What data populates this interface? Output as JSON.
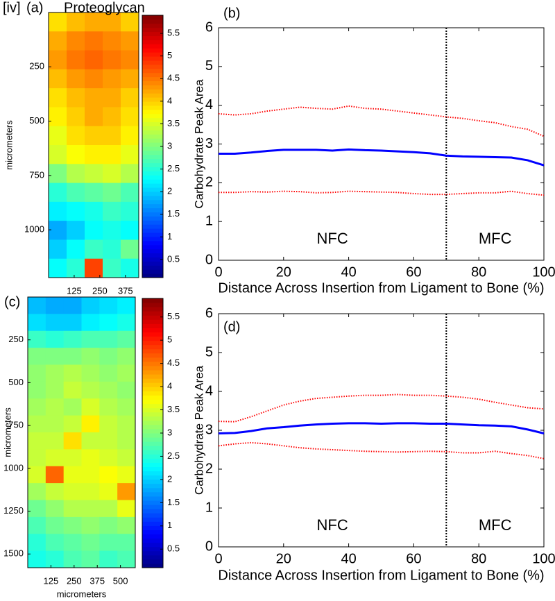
{
  "figure_label": "[iv]",
  "chart_data": [
    {
      "type": "heatmap",
      "panel": "(a)",
      "title": "Proteoglycan",
      "xlabel": "micrometers",
      "ylabel": "micrometers",
      "colormap": "jet",
      "y_inverted": true,
      "xlim": [
        0,
        440
      ],
      "xticks": [
        125,
        250,
        375
      ],
      "ylim": [
        0,
        1220
      ],
      "yticks": [
        250,
        500,
        750,
        1000
      ],
      "colorbar": {
        "lim": [
          0.1,
          5.9
        ],
        "ticks": [
          0.5,
          1,
          1.5,
          2,
          2.5,
          3,
          3.5,
          4,
          4.5,
          5,
          5.5
        ]
      },
      "z": [
        [
          3.9,
          4.1,
          4.2,
          4.2,
          4.0
        ],
        [
          4.2,
          4.4,
          4.5,
          4.4,
          4.3
        ],
        [
          4.3,
          4.5,
          4.6,
          4.5,
          4.4
        ],
        [
          4.1,
          4.3,
          4.4,
          4.3,
          4.2
        ],
        [
          3.9,
          4.1,
          4.2,
          4.2,
          4.0
        ],
        [
          3.8,
          4.0,
          4.2,
          4.1,
          3.9
        ],
        [
          3.6,
          3.9,
          4.0,
          4.0,
          3.8
        ],
        [
          3.5,
          3.7,
          3.8,
          3.8,
          3.6
        ],
        [
          3.0,
          3.3,
          3.4,
          3.5,
          3.3
        ],
        [
          2.5,
          2.7,
          2.8,
          2.9,
          2.7
        ],
        [
          2.2,
          2.3,
          2.4,
          2.6,
          2.5
        ],
        [
          1.8,
          2.0,
          2.3,
          2.4,
          2.3
        ],
        [
          2.0,
          2.3,
          2.6,
          2.5,
          2.9
        ],
        [
          2.3,
          2.5,
          4.8,
          2.6,
          2.4
        ]
      ]
    },
    {
      "type": "line",
      "panel": "(b)",
      "xlabel": "Distance Across Insertion from Ligament to Bone (%)",
      "ylabel": "Carbohydrate Peak Area",
      "xlim": [
        0,
        100
      ],
      "xticks": [
        0,
        20,
        40,
        60,
        80,
        100
      ],
      "ylim": [
        0,
        6
      ],
      "yticks": [
        0,
        1,
        2,
        3,
        4,
        5,
        6
      ],
      "divider": 70,
      "annotations": [
        "NFC",
        "MFC"
      ],
      "x": [
        0,
        5,
        10,
        15,
        20,
        25,
        30,
        35,
        40,
        45,
        50,
        55,
        60,
        65,
        70,
        75,
        80,
        85,
        90,
        95,
        100
      ],
      "series": [
        {
          "color": "#0000ff",
          "style": "solid",
          "values": [
            2.75,
            2.75,
            2.78,
            2.82,
            2.85,
            2.85,
            2.85,
            2.83,
            2.86,
            2.84,
            2.83,
            2.81,
            2.79,
            2.76,
            2.7,
            2.68,
            2.67,
            2.66,
            2.65,
            2.58,
            2.45
          ]
        },
        {
          "color": "#ff0000",
          "style": "dotted",
          "values": [
            3.78,
            3.75,
            3.78,
            3.85,
            3.9,
            3.95,
            3.92,
            3.9,
            3.98,
            3.92,
            3.9,
            3.85,
            3.8,
            3.75,
            3.7,
            3.66,
            3.6,
            3.55,
            3.45,
            3.38,
            3.2
          ]
        },
        {
          "color": "#ff0000",
          "style": "dotted",
          "values": [
            1.75,
            1.75,
            1.77,
            1.76,
            1.78,
            1.77,
            1.74,
            1.75,
            1.78,
            1.77,
            1.76,
            1.75,
            1.72,
            1.7,
            1.7,
            1.72,
            1.74,
            1.74,
            1.78,
            1.72,
            1.68
          ]
        }
      ]
    },
    {
      "type": "heatmap",
      "panel": "(c)",
      "xlabel": "micrometers",
      "ylabel": "micrometers",
      "colormap": "jet",
      "y_inverted": true,
      "xlim": [
        0,
        580
      ],
      "xticks": [
        125,
        250,
        375,
        500
      ],
      "ylim": [
        0,
        1580
      ],
      "yticks": [
        250,
        500,
        750,
        1000,
        1250,
        1500
      ],
      "colorbar": {
        "lim": [
          0.1,
          5.9
        ],
        "ticks": [
          0.5,
          1,
          1.5,
          2,
          2.5,
          3,
          3.5,
          4,
          4.5,
          5,
          5.5
        ]
      },
      "z": [
        [
          1.9,
          1.8,
          1.8,
          2.0,
          2.1,
          2.2
        ],
        [
          2.1,
          2.0,
          2.0,
          2.2,
          2.3,
          2.4
        ],
        [
          2.6,
          2.5,
          2.6,
          2.7,
          2.7,
          2.8
        ],
        [
          3.0,
          3.0,
          3.0,
          3.1,
          3.0,
          3.1
        ],
        [
          3.1,
          3.2,
          3.3,
          3.2,
          3.1,
          3.2
        ],
        [
          3.1,
          3.2,
          3.4,
          3.3,
          3.2,
          3.1
        ],
        [
          3.2,
          3.3,
          3.2,
          3.5,
          3.3,
          3.2
        ],
        [
          3.3,
          3.3,
          3.4,
          3.8,
          3.4,
          3.3
        ],
        [
          3.4,
          3.4,
          3.9,
          3.4,
          3.4,
          3.3
        ],
        [
          3.4,
          3.5,
          3.5,
          3.6,
          3.5,
          3.4
        ],
        [
          3.5,
          4.6,
          3.6,
          3.6,
          3.7,
          3.6
        ],
        [
          3.2,
          3.4,
          3.5,
          3.5,
          3.6,
          4.3
        ],
        [
          2.9,
          3.1,
          3.3,
          3.3,
          3.3,
          3.6
        ],
        [
          2.7,
          2.9,
          3.0,
          3.1,
          3.0,
          3.1
        ],
        [
          2.5,
          2.7,
          2.8,
          2.9,
          2.8,
          2.8
        ],
        [
          2.4,
          2.5,
          2.7,
          2.8,
          2.6,
          2.7
        ]
      ]
    },
    {
      "type": "line",
      "panel": "(d)",
      "xlabel": "Distance Across Insertion from Ligament to Bone (%)",
      "ylabel": "Carbohydrate Peak Area",
      "xlim": [
        0,
        100
      ],
      "xticks": [
        0,
        20,
        40,
        60,
        80,
        100
      ],
      "ylim": [
        0,
        6
      ],
      "yticks": [
        0,
        1,
        2,
        3,
        4,
        5,
        6
      ],
      "divider": 70,
      "annotations": [
        "NFC",
        "MFC"
      ],
      "x": [
        0,
        5,
        10,
        15,
        20,
        25,
        30,
        35,
        40,
        45,
        50,
        55,
        60,
        65,
        70,
        75,
        80,
        85,
        90,
        95,
        100
      ],
      "series": [
        {
          "color": "#0000ff",
          "style": "solid",
          "values": [
            2.92,
            2.93,
            2.98,
            3.05,
            3.08,
            3.12,
            3.15,
            3.17,
            3.18,
            3.18,
            3.17,
            3.18,
            3.18,
            3.17,
            3.17,
            3.15,
            3.13,
            3.12,
            3.1,
            3.02,
            2.92
          ]
        },
        {
          "color": "#ff0000",
          "style": "dotted",
          "values": [
            3.23,
            3.22,
            3.35,
            3.5,
            3.65,
            3.75,
            3.82,
            3.85,
            3.88,
            3.9,
            3.9,
            3.92,
            3.9,
            3.9,
            3.88,
            3.85,
            3.8,
            3.72,
            3.65,
            3.58,
            3.55
          ]
        },
        {
          "color": "#ff0000",
          "style": "dotted",
          "values": [
            2.6,
            2.65,
            2.68,
            2.65,
            2.6,
            2.55,
            2.52,
            2.5,
            2.48,
            2.46,
            2.45,
            2.44,
            2.45,
            2.46,
            2.45,
            2.42,
            2.42,
            2.46,
            2.4,
            2.35,
            2.27
          ]
        }
      ]
    }
  ]
}
